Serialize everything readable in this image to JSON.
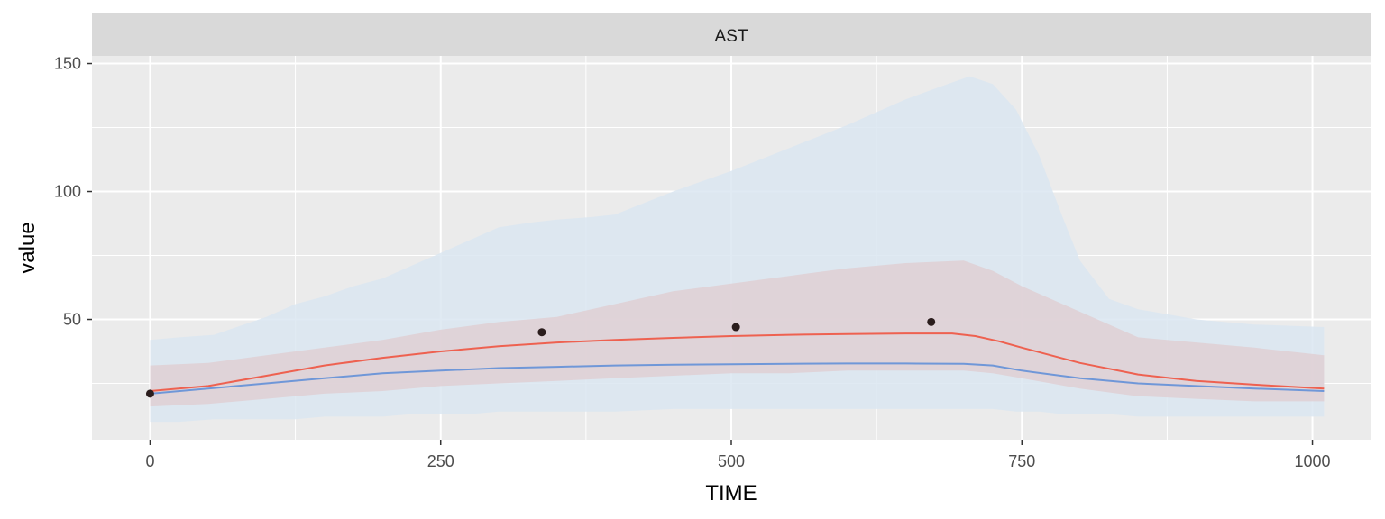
{
  "chart_data": {
    "type": "line",
    "facet_label": "AST",
    "xlabel": "TIME",
    "ylabel": "value",
    "xlim": [
      -50,
      1050
    ],
    "ylim": [
      3,
      153
    ],
    "x_ticks": [
      0,
      250,
      500,
      750,
      1000
    ],
    "y_ticks": [
      50,
      100,
      150
    ],
    "grid": true,
    "colors": {
      "panel": "#ebebeb",
      "strip": "#d9d9d9",
      "grid": "#ffffff",
      "blue_band": "#dae6f1",
      "red_band": "#dfcfd3",
      "blue_line": "#6f97d8",
      "red_line": "#ee6150",
      "points": "#2b1d1d"
    },
    "bands": [
      {
        "color_key": "blue_band",
        "x": [
          0,
          25,
          55,
          100,
          125,
          150,
          175,
          200,
          225,
          250,
          275,
          300,
          330,
          350,
          380,
          400,
          450,
          500,
          550,
          600,
          650,
          680,
          705,
          725,
          745,
          765,
          785,
          800,
          825,
          850,
          875,
          900,
          925,
          950,
          1010
        ],
        "upper": [
          42,
          43,
          44,
          51,
          56,
          59,
          63,
          66,
          71,
          76,
          81,
          86,
          88,
          89,
          90,
          91,
          100,
          108,
          117,
          126,
          136,
          141,
          145,
          142,
          132,
          114,
          90,
          73,
          58,
          54,
          52,
          50,
          49,
          48,
          47
        ],
        "lower": [
          10,
          10,
          11,
          11,
          11,
          12,
          12,
          12,
          13,
          13,
          13,
          14,
          14,
          14,
          14,
          14,
          15,
          15,
          15,
          15,
          15,
          15,
          15,
          15,
          14,
          14,
          13,
          13,
          13,
          12,
          12,
          12,
          12,
          12,
          12
        ]
      },
      {
        "color_key": "red_band",
        "x": [
          0,
          50,
          100,
          150,
          200,
          250,
          300,
          350,
          400,
          450,
          500,
          550,
          600,
          650,
          700,
          725,
          750,
          800,
          850,
          900,
          950,
          1010
        ],
        "upper": [
          32,
          33,
          36,
          39,
          42,
          46,
          49,
          51,
          56,
          61,
          64,
          67,
          70,
          72,
          73,
          69,
          63,
          53,
          43,
          41,
          39,
          36
        ],
        "lower": [
          16,
          17,
          19,
          21,
          22,
          24,
          25,
          26,
          27,
          28,
          29,
          29,
          30,
          30,
          30,
          29,
          27,
          23,
          20,
          19,
          18,
          18
        ]
      }
    ],
    "series": [
      {
        "color_key": "blue_line",
        "x": [
          0,
          50,
          100,
          150,
          200,
          250,
          300,
          350,
          400,
          450,
          500,
          550,
          600,
          650,
          700,
          725,
          750,
          800,
          850,
          900,
          950,
          1010
        ],
        "y": [
          21,
          23,
          25,
          27,
          29,
          30,
          31,
          31.5,
          32,
          32.3,
          32.5,
          32.7,
          32.8,
          32.8,
          32.7,
          32,
          30,
          27,
          25,
          24,
          23,
          22
        ]
      },
      {
        "color_key": "red_line",
        "x": [
          0,
          50,
          100,
          150,
          200,
          250,
          300,
          350,
          400,
          450,
          500,
          550,
          600,
          650,
          690,
          710,
          730,
          750,
          800,
          850,
          900,
          950,
          1010
        ],
        "y": [
          22,
          24,
          28,
          32,
          35,
          37.5,
          39.5,
          41,
          42,
          42.8,
          43.5,
          44,
          44.3,
          44.5,
          44.5,
          43.5,
          41.5,
          39,
          33,
          28.5,
          26,
          24.5,
          23
        ]
      }
    ],
    "points": {
      "color_key": "points",
      "x": [
        0,
        337,
        504,
        672
      ],
      "y": [
        21,
        45,
        47,
        49
      ]
    }
  }
}
